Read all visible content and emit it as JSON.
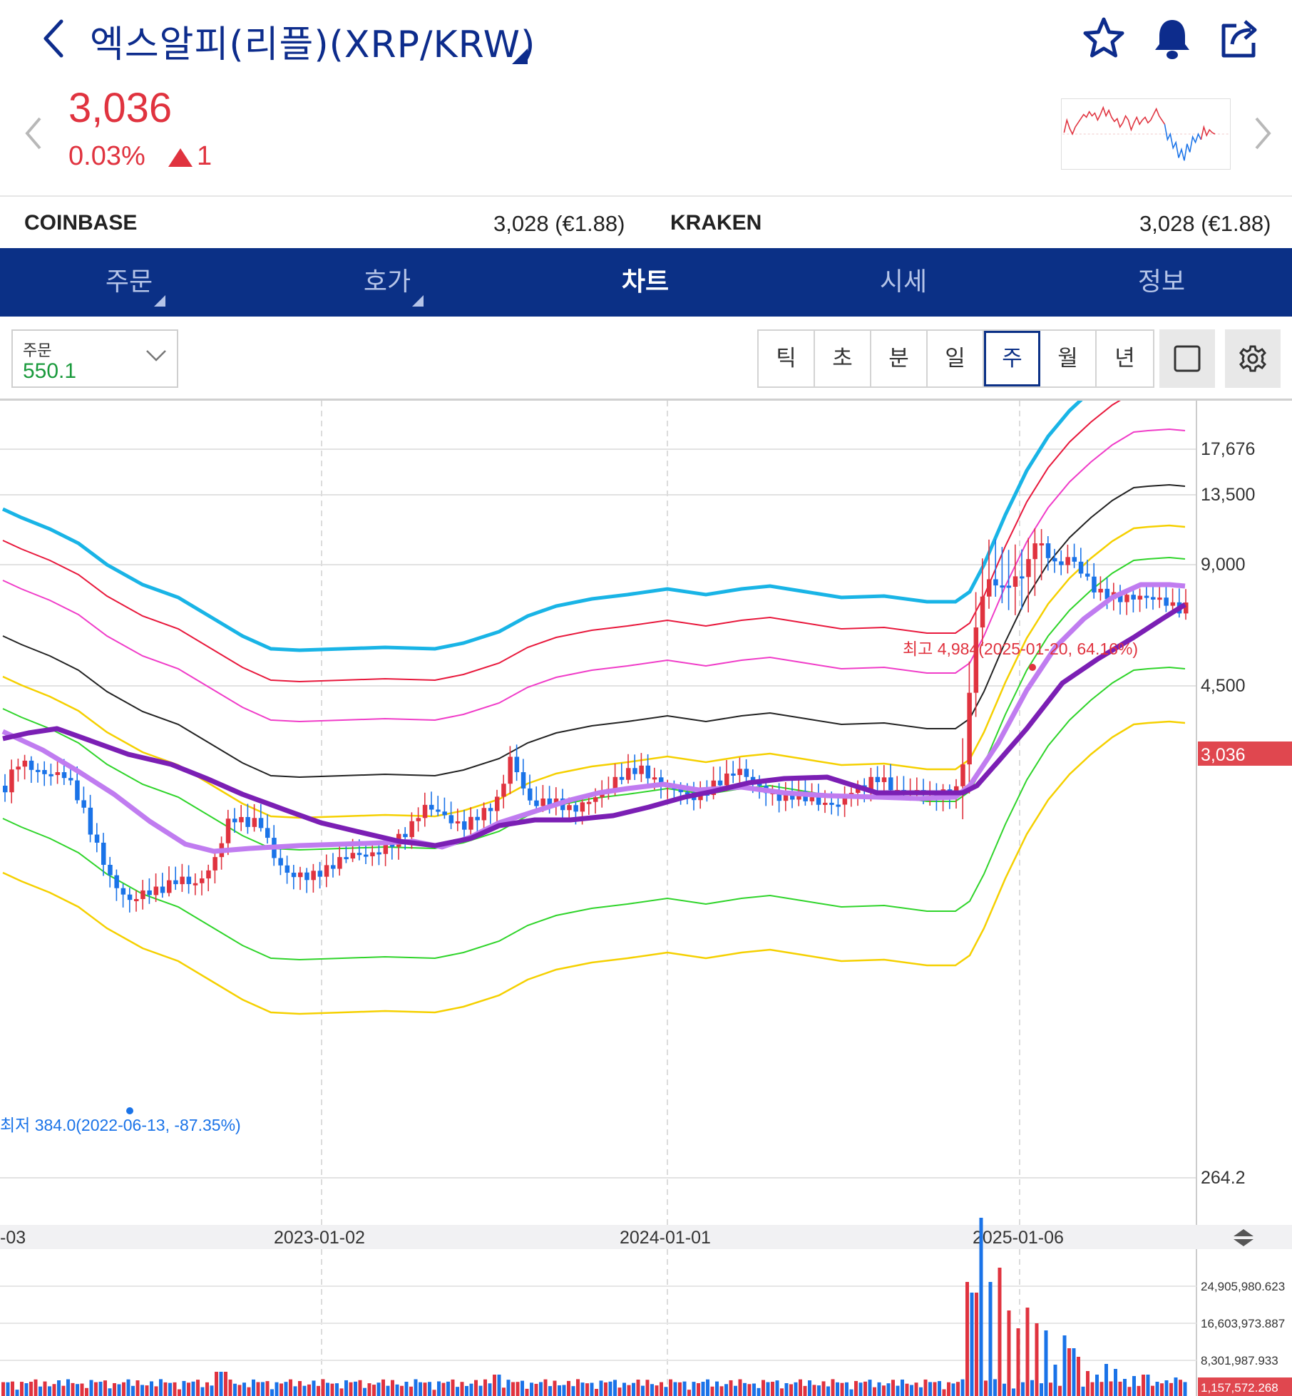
{
  "header": {
    "title": "엑스알피(리플)(XRP/KRW)",
    "icons": [
      "back-icon",
      "star-icon",
      "bell-icon",
      "share-icon"
    ]
  },
  "quote": {
    "price": "3,036",
    "change_pct": "0.03%",
    "change_abs": "1",
    "direction": "up",
    "up_color": "#e0333f",
    "down_color": "#1a73e8"
  },
  "exchanges": [
    {
      "name": "COINBASE",
      "value": "3,028 (€1.88)"
    },
    {
      "name": "KRAKEN",
      "value": "3,028 (€1.88)"
    }
  ],
  "tabs": [
    {
      "label": "주문",
      "has_menu": true
    },
    {
      "label": "호가",
      "has_menu": true
    },
    {
      "label": "차트",
      "active": true
    },
    {
      "label": "시세"
    },
    {
      "label": "정보"
    }
  ],
  "toolbar": {
    "selector_label": "주문",
    "selector_value": "550.1",
    "periods": [
      "틱",
      "초",
      "분",
      "일",
      "주",
      "월",
      "년"
    ],
    "active_period": "주",
    "extra_icons": [
      "square-icon",
      "settings-icon"
    ]
  },
  "chart": {
    "y_ticks": [
      "17,676",
      "13,500",
      "9,000",
      "4,500",
      "264.2"
    ],
    "x_ticks": [
      "-03",
      "2023-01-02",
      "2024-01-01",
      "2025-01-06"
    ],
    "current_price_tag": "3,036",
    "max_note": "최고 4,984(2025-01-20, 64.16%)",
    "min_note": "최저 384.0(2022-06-13, -87.35%)",
    "volume_ticks": [
      "24,905,980.623",
      "16,603,973.887",
      "8,301,987.933"
    ],
    "volume_current_tag": "1,157,572.268",
    "colors": {
      "up": "#e0333f",
      "down": "#1a73e8",
      "band_outer": "#19b4e6",
      "band_red": "#e8183c",
      "band_pink": "#f03cc8",
      "band_black": "#222222",
      "band_yellow": "#f5d000",
      "band_green": "#2fd42a",
      "ma_short": "#c07cf0",
      "ma_long": "#7b1fb4"
    }
  }
}
